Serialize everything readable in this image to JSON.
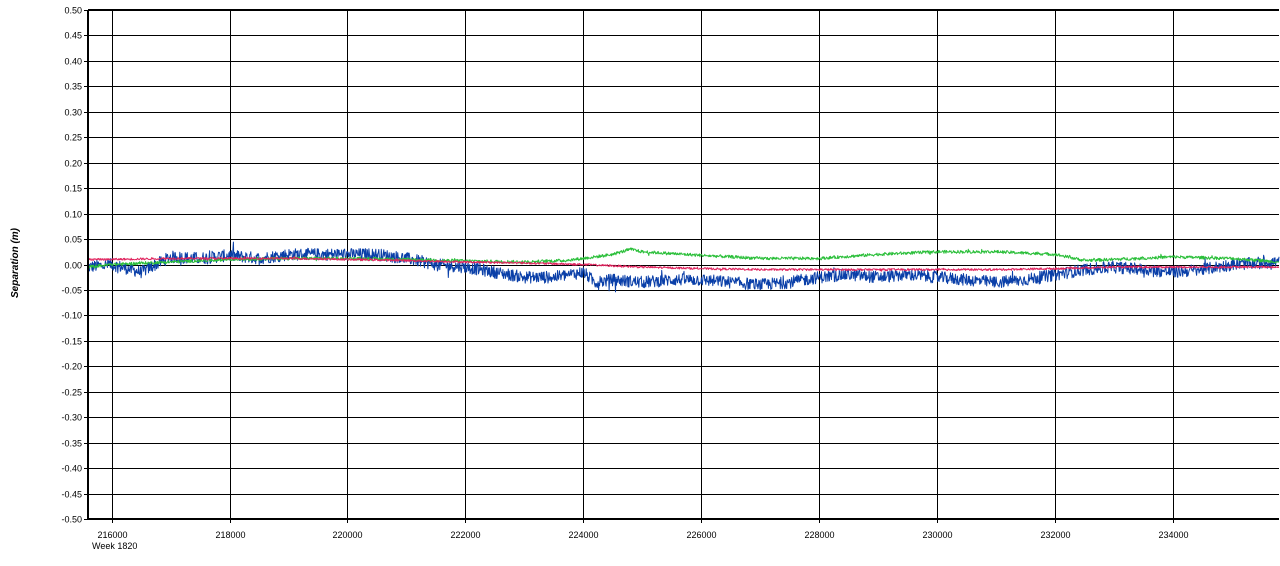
{
  "chart_data": {
    "type": "line",
    "title": "",
    "ylabel": "Separation (m)",
    "xlabel": "",
    "x_sublabel": "Week 1820",
    "xlim": [
      215600,
      235800
    ],
    "ylim": [
      -0.5,
      0.5
    ],
    "x_ticks": [
      216000,
      218000,
      220000,
      222000,
      224000,
      226000,
      228000,
      230000,
      232000,
      234000
    ],
    "x_tick_labels": [
      "216000",
      "218000",
      "220000",
      "222000",
      "224000",
      "226000",
      "228000",
      "230000",
      "232000",
      "234000"
    ],
    "y_ticks": [
      0.5,
      0.45,
      0.4,
      0.35,
      0.3,
      0.25,
      0.2,
      0.15,
      0.1,
      0.05,
      0.0,
      -0.05,
      -0.1,
      -0.15,
      -0.2,
      -0.25,
      -0.3,
      -0.35,
      -0.4,
      -0.45,
      -0.5
    ],
    "y_tick_labels": [
      "0.50",
      "0.45",
      "0.40",
      "0.35",
      "0.30",
      "0.25",
      "0.20",
      "0.15",
      "0.10",
      "0.05",
      "0.00",
      "-0.05",
      "-0.10",
      "-0.15",
      "-0.20",
      "-0.25",
      "-0.30",
      "-0.35",
      "-0.40",
      "-0.45",
      "-0.50"
    ],
    "grid": true,
    "legend": "none",
    "series": [
      {
        "color": "#0a3fa8",
        "noise": 0.012,
        "x": [
          215600,
          216000,
          216500,
          217000,
          217500,
          218000,
          218500,
          219000,
          219500,
          220000,
          220500,
          221000,
          221500,
          222000,
          222500,
          223000,
          223500,
          224000,
          224200,
          224500,
          225000,
          225500,
          226000,
          226500,
          227000,
          227500,
          228000,
          228500,
          229000,
          229500,
          230000,
          230500,
          231000,
          231500,
          232000,
          232500,
          233000,
          233500,
          234000,
          234500,
          235000,
          235800
        ],
        "values": [
          -0.005,
          0.0,
          -0.015,
          0.015,
          0.012,
          0.018,
          0.012,
          0.02,
          0.02,
          0.02,
          0.02,
          0.012,
          0.0,
          -0.005,
          -0.015,
          -0.025,
          -0.025,
          -0.015,
          -0.035,
          -0.03,
          -0.035,
          -0.03,
          -0.03,
          -0.035,
          -0.04,
          -0.035,
          -0.025,
          -0.02,
          -0.025,
          -0.02,
          -0.025,
          -0.03,
          -0.035,
          -0.03,
          -0.02,
          -0.01,
          -0.005,
          -0.01,
          -0.015,
          -0.01,
          0.0,
          0.005
        ]
      },
      {
        "color": "#2bbf3a",
        "noise": 0.003,
        "x": [
          215600,
          216000,
          217000,
          218000,
          219000,
          220000,
          221000,
          222000,
          223000,
          223700,
          224000,
          224200,
          224500,
          224800,
          225000,
          226000,
          227000,
          228000,
          229000,
          230000,
          231000,
          232000,
          232500,
          233000,
          234000,
          235000,
          235800
        ],
        "values": [
          -0.005,
          0.0,
          0.005,
          0.01,
          0.012,
          0.012,
          0.01,
          0.007,
          0.005,
          0.008,
          0.012,
          0.015,
          0.02,
          0.03,
          0.025,
          0.018,
          0.012,
          0.012,
          0.02,
          0.025,
          0.025,
          0.02,
          0.008,
          0.01,
          0.015,
          0.012,
          0.005
        ]
      },
      {
        "color": "#e0245e",
        "noise": 0.002,
        "x": [
          215600,
          216000,
          217000,
          218000,
          219000,
          220000,
          221000,
          222000,
          223000,
          224000,
          225000,
          226000,
          227000,
          228000,
          229000,
          230000,
          231000,
          232000,
          233000,
          234000,
          235000,
          235800
        ],
        "values": [
          0.01,
          0.01,
          0.012,
          0.012,
          0.012,
          0.01,
          0.008,
          0.005,
          0.003,
          0.0,
          -0.005,
          -0.008,
          -0.01,
          -0.01,
          -0.01,
          -0.01,
          -0.01,
          -0.008,
          -0.005,
          -0.005,
          -0.005,
          -0.005
        ]
      }
    ]
  }
}
